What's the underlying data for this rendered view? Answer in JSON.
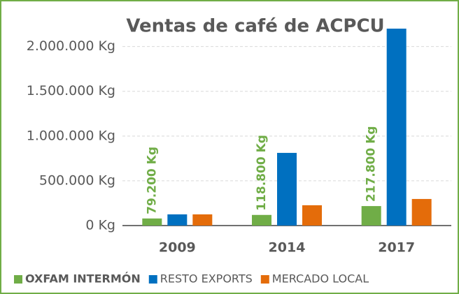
{
  "chart_data": {
    "type": "bar",
    "title": "Ventas de café de ACPCU",
    "categories": [
      "2009",
      "2014",
      "2017"
    ],
    "series": [
      {
        "name": "OXFAM INTERMÓN",
        "color": "#70ad47",
        "values": [
          79200,
          118800,
          217800
        ],
        "value_labels": [
          "79.200 Kg",
          "118.800 Kg",
          "217.800 Kg"
        ]
      },
      {
        "name": "RESTO EXPORTS",
        "color": "#0070c0",
        "values": [
          125000,
          812000,
          2200000
        ]
      },
      {
        "name": "MERCADO LOCAL",
        "color": "#e46c0a",
        "values": [
          125000,
          227000,
          297000
        ]
      }
    ],
    "ylim": [
      0,
      2200000
    ],
    "yticks": [
      {
        "value": 0,
        "label": "0 Kg"
      },
      {
        "value": 500000,
        "label": "500.000 Kg"
      },
      {
        "value": 1000000,
        "label": "1.000.000 Kg"
      },
      {
        "value": 1500000,
        "label": "1.500.000 Kg"
      },
      {
        "value": 2000000,
        "label": "2.000.000 Kg"
      }
    ],
    "grid": true,
    "legend": "bottom"
  }
}
